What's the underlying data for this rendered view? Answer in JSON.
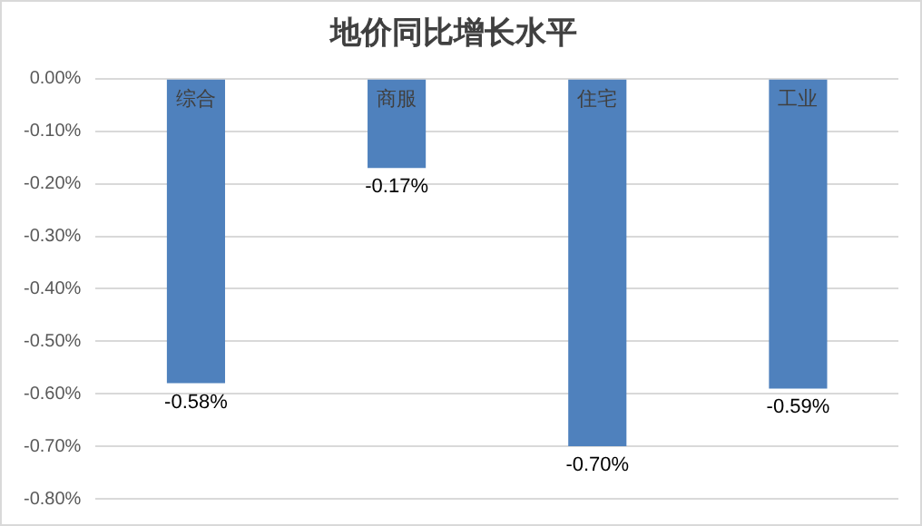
{
  "chart_data": {
    "type": "bar",
    "title": "地价同比增长水平",
    "categories": [
      "综合",
      "商服",
      "住宅",
      "工业"
    ],
    "values": [
      -0.58,
      -0.17,
      -0.7,
      -0.59
    ],
    "color": "#4f81bd",
    "value_labels": [
      "-0.58%",
      "-0.17%",
      "-0.70%",
      "-0.59%"
    ],
    "ylim": [
      -0.8,
      0
    ],
    "yticks": [
      {
        "value": 0,
        "label": "0.00%"
      },
      {
        "value": -0.1,
        "label": "-0.10%"
      },
      {
        "value": -0.2,
        "label": "-0.20%"
      },
      {
        "value": -0.3,
        "label": "-0.30%"
      },
      {
        "value": -0.4,
        "label": "-0.40%"
      },
      {
        "value": -0.5,
        "label": "-0.50%"
      },
      {
        "value": -0.6,
        "label": "-0.60%"
      },
      {
        "value": -0.7,
        "label": "-0.70%"
      },
      {
        "value": -0.8,
        "label": "-0.80%"
      }
    ],
    "grid": "y",
    "legend": false
  }
}
